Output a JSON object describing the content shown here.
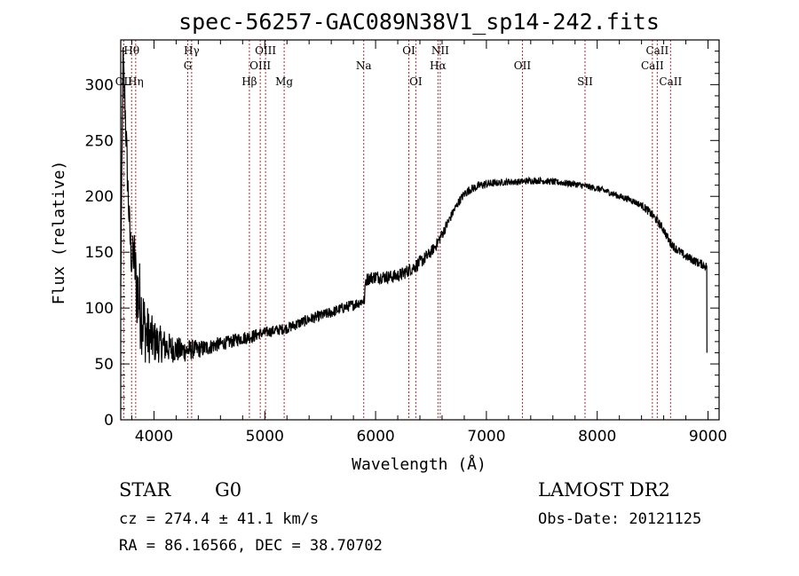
{
  "chart_data": {
    "type": "line",
    "title": "spec-56257-GAC089N38V1_sp14-242.fits",
    "xlabel": "Wavelength (Å)",
    "ylabel": "Flux (relative)",
    "xlim": [
      3700,
      9100
    ],
    "ylim": [
      0,
      340
    ],
    "x_ticks": [
      4000,
      5000,
      6000,
      7000,
      8000,
      9000
    ],
    "y_ticks": [
      0,
      50,
      100,
      150,
      200,
      250,
      300
    ],
    "grid": false,
    "series": [
      {
        "x": [
          3700,
          3720,
          3740,
          3760,
          3780,
          3800,
          3820,
          3840,
          3860,
          3880,
          3900,
          3920,
          3950,
          3980,
          4000,
          4050,
          4100,
          4150,
          4200,
          4250,
          4300,
          4350,
          4400,
          4450,
          4500,
          4550,
          4600,
          4650,
          4700,
          4750,
          4800,
          4850,
          4900,
          4950,
          5000,
          5050,
          5100,
          5150,
          5200,
          5300,
          5400,
          5500,
          5600,
          5700,
          5800,
          5850,
          5900,
          5910,
          5950,
          6000,
          6050,
          6100,
          6150,
          6200,
          6250,
          6300,
          6350,
          6400,
          6450,
          6500,
          6550,
          6600,
          6650,
          6700,
          6750,
          6800,
          6850,
          6900,
          6950,
          7000,
          7100,
          7200,
          7300,
          7400,
          7500,
          7600,
          7700,
          7800,
          7900,
          8000,
          8100,
          8200,
          8300,
          8400,
          8450,
          8500,
          8550,
          8600,
          8650,
          8700,
          8750,
          8800,
          8850,
          8900,
          8950,
          8990
        ],
        "y": [
          120,
          320,
          280,
          220,
          170,
          140,
          150,
          120,
          110,
          100,
          90,
          80,
          75,
          72,
          70,
          68,
          66,
          64,
          63,
          62,
          62,
          63,
          63,
          64,
          65,
          67,
          68,
          69,
          70,
          72,
          73,
          74,
          75,
          77,
          78,
          79,
          80,
          81,
          82,
          86,
          90,
          93,
          96,
          100,
          103,
          105,
          107,
          125,
          127,
          128,
          128,
          128,
          128,
          129,
          131,
          134,
          137,
          141,
          145,
          150,
          157,
          166,
          176,
          186,
          195,
          202,
          206,
          208,
          210,
          211,
          212,
          213,
          213,
          214,
          214,
          213,
          212,
          211,
          209,
          207,
          204,
          200,
          197,
          192,
          188,
          183,
          177,
          170,
          160,
          154,
          150,
          146,
          144,
          141,
          139,
          137
        ],
        "noise": [
          0,
          20,
          20,
          20,
          20,
          20,
          25,
          35,
          40,
          40,
          35,
          30,
          25,
          22,
          20,
          17,
          15,
          13,
          12,
          11,
          10,
          9,
          8,
          8,
          7,
          7,
          6,
          6,
          6,
          6,
          6,
          6,
          6,
          5,
          5,
          5,
          5,
          5,
          5,
          5,
          5,
          5,
          5,
          5,
          5,
          5,
          5,
          6,
          6,
          6,
          6,
          6,
          6,
          6,
          6,
          6,
          6,
          6,
          6,
          5,
          5,
          5,
          5,
          4,
          4,
          4,
          4,
          4,
          4,
          4,
          3,
          3,
          3,
          3,
          3,
          3,
          3,
          3,
          3,
          3,
          3,
          3,
          3,
          3,
          4,
          4,
          4,
          4,
          4,
          4,
          4,
          4,
          4,
          4,
          4,
          4
        ]
      }
    ],
    "lines": [
      {
        "name": "Hθ",
        "wave": 3798,
        "row": 1
      },
      {
        "name": "OII",
        "wave": 3727,
        "row": 3
      },
      {
        "name": "Hη",
        "wave": 3835,
        "row": 3
      },
      {
        "name": "Hγ",
        "wave": 4340,
        "row": 1
      },
      {
        "name": "G",
        "wave": 4305,
        "row": 2
      },
      {
        "name": "Hβ",
        "wave": 4861,
        "row": 3
      },
      {
        "name": "OIII",
        "wave": 5007,
        "row": 1
      },
      {
        "name": "OIII",
        "wave": 4959,
        "row": 2
      },
      {
        "name": "Mg",
        "wave": 5175,
        "row": 3
      },
      {
        "name": "Na",
        "wave": 5893,
        "row": 2
      },
      {
        "name": "OI",
        "wave": 6300,
        "row": 1
      },
      {
        "name": "OI",
        "wave": 6363,
        "row": 3
      },
      {
        "name": "NII",
        "wave": 6583,
        "row": 1
      },
      {
        "name": "Hα",
        "wave": 6563,
        "row": 2
      },
      {
        "name": "OII",
        "wave": 7325,
        "row": 2
      },
      {
        "name": "SII",
        "wave": 7890,
        "row": 3
      },
      {
        "name": "CaII",
        "wave": 8542,
        "row": 1
      },
      {
        "name": "CaII",
        "wave": 8498,
        "row": 2
      },
      {
        "name": "CaII",
        "wave": 8662,
        "row": 3
      }
    ],
    "colors": {
      "spectrum": "#000000",
      "line_marker": "#b8282e"
    }
  },
  "info": {
    "class": "STAR",
    "subclass": "G0",
    "cz": "cz = 274.4 ± 41.1 km/s",
    "coords": "RA =  86.16566, DEC =  38.70702",
    "survey": "LAMOST DR2",
    "obs_date": "Obs-Date: 20121125"
  }
}
